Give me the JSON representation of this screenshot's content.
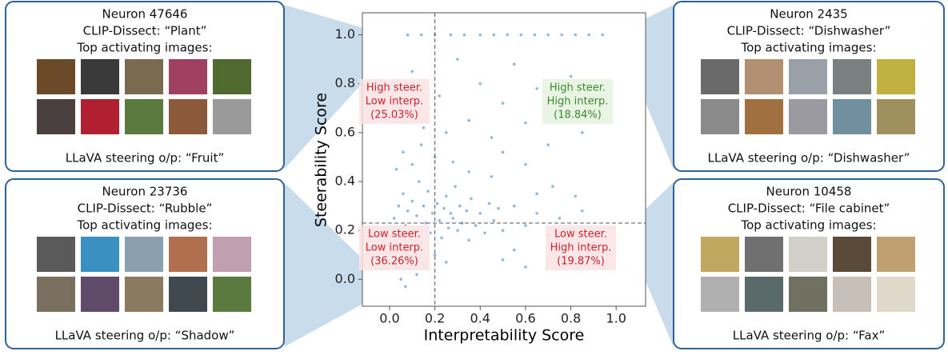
{
  "chart_data": {
    "type": "scatter",
    "x_label": "Interpretability Score",
    "y_label": "Steerability Score",
    "xlim": [
      -0.12,
      1.13
    ],
    "ylim": [
      -0.11,
      1.09
    ],
    "xticks": [
      {
        "value": 0,
        "label": "0.0"
      },
      0.2,
      0.4,
      0.6,
      0.8,
      {
        "value": 1,
        "label": "1.0"
      }
    ],
    "yticks": [
      {
        "value": 0,
        "label": "0.0"
      },
      0.2,
      0.4,
      0.6,
      0.8,
      {
        "value": 1,
        "label": "1.0"
      }
    ],
    "thresholds": {
      "x": 0.2,
      "y": 0.23
    },
    "series": [
      {
        "color": "#3b7dc0",
        "x": [
          0.08,
          0.14,
          0.2,
          0.27,
          0.33,
          0.4,
          0.46,
          0.52,
          0.58,
          0.64,
          0.7,
          0.76,
          0.82,
          0.88,
          0.94,
          0.02,
          0.04,
          0.05,
          0.06,
          0.07,
          0.08,
          0.09,
          0.1,
          0.11,
          0.12,
          0.13,
          0.14,
          0.15,
          0.16,
          0.17,
          0.18,
          0.19,
          0.21,
          0.22,
          0.23,
          0.24,
          0.25,
          0.26,
          0.27,
          0.28,
          0.29,
          0.3,
          0.31,
          0.32,
          0.34,
          0.35,
          0.36,
          0.38,
          0.4,
          0.42,
          0.44,
          0.46,
          0.48,
          0.5,
          0.03,
          0.05,
          0.07,
          0.1,
          0.12,
          0.15,
          0.2,
          0.25,
          0.03,
          0.06,
          0.1,
          0.14,
          0.2,
          0.28,
          0.35,
          0.45,
          0.05,
          0.1,
          0.15,
          0.22,
          0.3,
          0.35,
          0.4,
          0.45,
          0.5,
          0.55,
          0.6,
          0.65,
          0.7,
          0.75,
          0.8,
          0.85,
          0.9,
          0.25,
          0.5,
          0.6,
          0.55,
          0.6,
          0.65,
          0.7,
          0.75,
          0.8,
          0.85,
          0.9,
          0.55,
          0.65,
          0.72,
          0.82,
          0.6,
          0.5
        ],
        "values": [
          1,
          1,
          1,
          1,
          1,
          1,
          1,
          1,
          1,
          1,
          1,
          1,
          1,
          1,
          1,
          0.25,
          0.3,
          0.18,
          0.35,
          0.22,
          0.28,
          0.12,
          0.32,
          0.2,
          0.26,
          0.4,
          0.15,
          0.3,
          0.23,
          0.36,
          0.19,
          0.27,
          0.31,
          0.24,
          0.17,
          0.29,
          0.34,
          0.21,
          0.27,
          0.25,
          0.38,
          0.2,
          0.3,
          0.23,
          0.28,
          0.16,
          0.33,
          0.22,
          0.27,
          0.19,
          0.31,
          0.24,
          0.29,
          0.2,
          0.05,
          0.0,
          -0.03,
          0.08,
          0.02,
          0.06,
          0.1,
          0.07,
          0.45,
          0.52,
          0.47,
          0.55,
          0.5,
          0.48,
          0.44,
          0.42,
          0.7,
          0.85,
          0.62,
          0.75,
          0.9,
          0.65,
          0.8,
          0.58,
          0.72,
          0.88,
          0.64,
          0.78,
          0.55,
          0.68,
          0.83,
          0.6,
          0.74,
          0.6,
          0.52,
          0.47,
          0.3,
          0.22,
          0.27,
          0.18,
          0.25,
          0.2,
          0.28,
          0.15,
          0.12,
          0.35,
          0.38,
          0.34,
          0.05,
          0.08
        ]
      }
    ],
    "annotations": [
      {
        "lines": [
          "High steer.",
          "Low interp.",
          "(25.03%)"
        ],
        "color": "#d0202a",
        "bg": "#fbe3e4"
      },
      {
        "lines": [
          "High steer.",
          "High interp.",
          "(18.84%)"
        ],
        "color": "#3a8a2a",
        "bg": "#e6f2e1"
      },
      {
        "lines": [
          "Low steer.",
          "Low interp.",
          "(36.26%)"
        ],
        "color": "#d0202a",
        "bg": "#fbe3e4"
      },
      {
        "lines": [
          "Low steer.",
          "High interp.",
          "(19.87%)"
        ],
        "color": "#d0202a",
        "bg": "#fbe3e4"
      }
    ]
  },
  "panels": [
    {
      "neuron": "Neuron 47646",
      "clip": "CLIP-Dissect: “Plant”",
      "images_label": "Top activating images:",
      "steering": "LLaVA steering o/p: “Fruit”"
    },
    {
      "neuron": "Neuron 23736",
      "clip": "CLIP-Dissect: “Rubble”",
      "images_label": "Top activating images:",
      "steering": "LLaVA steering o/p: “Shadow”"
    },
    {
      "neuron": "Neuron 2435",
      "clip": "CLIP-Dissect: “Dishwasher”",
      "images_label": "Top activating images:",
      "steering": "LLaVA steering o/p: “Dishwasher”"
    },
    {
      "neuron": "Neuron 10458",
      "clip": "CLIP-Dissect: “File cabinet”",
      "images_label": "Top activating images:",
      "steering": "LLaVA steering o/p: “Fax”"
    }
  ]
}
